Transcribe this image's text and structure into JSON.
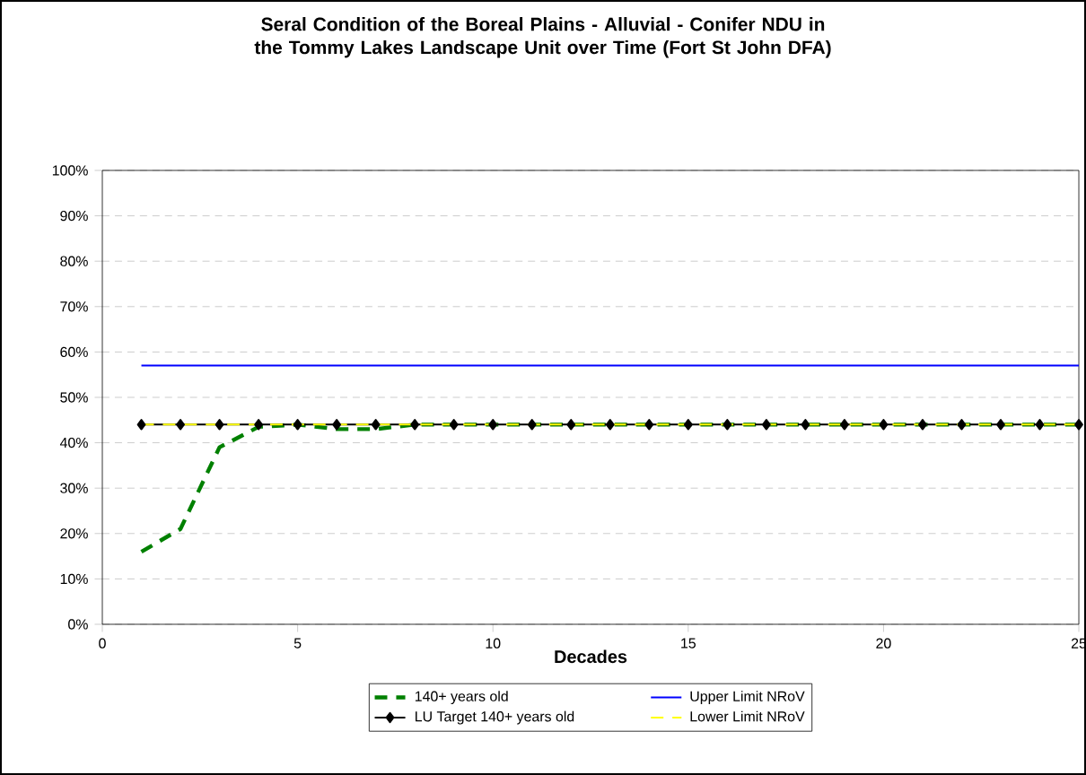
{
  "chart_data": {
    "type": "line",
    "title": "Seral Condition of the Boreal Plains - Alluvial - Conifer NDU in the Tommy Lakes Landscape Unit over Time (Fort St John DFA)",
    "xlabel": "Decades",
    "x": [
      1,
      2,
      3,
      4,
      5,
      6,
      7,
      8,
      9,
      10,
      11,
      12,
      13,
      14,
      15,
      16,
      17,
      18,
      19,
      20,
      21,
      22,
      23,
      24,
      25
    ],
    "series": [
      {
        "name": "140+ years old",
        "color": "#008000",
        "line_style": "dashed",
        "marker": "none",
        "values": [
          16,
          21,
          39,
          43.5,
          44,
          43,
          43,
          44,
          44,
          44,
          44,
          44,
          44,
          44,
          44,
          44,
          44,
          44,
          44,
          44,
          44,
          44,
          44,
          44,
          44
        ]
      },
      {
        "name": "Upper Limit NRoV",
        "color": "#0000ff",
        "line_style": "solid",
        "marker": "none",
        "values": [
          57,
          57,
          57,
          57,
          57,
          57,
          57,
          57,
          57,
          57,
          57,
          57,
          57,
          57,
          57,
          57,
          57,
          57,
          57,
          57,
          57,
          57,
          57,
          57,
          57
        ]
      },
      {
        "name": "LU Target 140+ years old",
        "color": "#000000",
        "line_style": "solid",
        "marker": "diamond",
        "values": [
          44,
          44,
          44,
          44,
          44,
          44,
          44,
          44,
          44,
          44,
          44,
          44,
          44,
          44,
          44,
          44,
          44,
          44,
          44,
          44,
          44,
          44,
          44,
          44,
          44
        ]
      },
      {
        "name": "Lower Limit NRoV",
        "color": "#ffff00",
        "line_style": "dashed",
        "marker": "none",
        "values": [
          44,
          44,
          44,
          44,
          44,
          44,
          44,
          44,
          44,
          44,
          44,
          44,
          44,
          44,
          44,
          44,
          44,
          44,
          44,
          44,
          44,
          44,
          44,
          44,
          44
        ]
      }
    ],
    "xlim": [
      0,
      25
    ],
    "xticks": [
      0,
      5,
      10,
      15,
      20,
      25
    ],
    "ylim": [
      0,
      100
    ],
    "yticks": [
      {
        "value": 0,
        "label": "0%"
      },
      {
        "value": 10,
        "label": "10%"
      },
      {
        "value": 20,
        "label": "20%"
      },
      {
        "value": 30,
        "label": "30%"
      },
      {
        "value": 40,
        "label": "40%"
      },
      {
        "value": 50,
        "label": "50%"
      },
      {
        "value": 60,
        "label": "60%"
      },
      {
        "value": 70,
        "label": "70%"
      },
      {
        "value": 80,
        "label": "80%"
      },
      {
        "value": 90,
        "label": "90%"
      },
      {
        "value": 100,
        "label": "100%"
      }
    ],
    "grid": "y",
    "legend": "bottom"
  }
}
